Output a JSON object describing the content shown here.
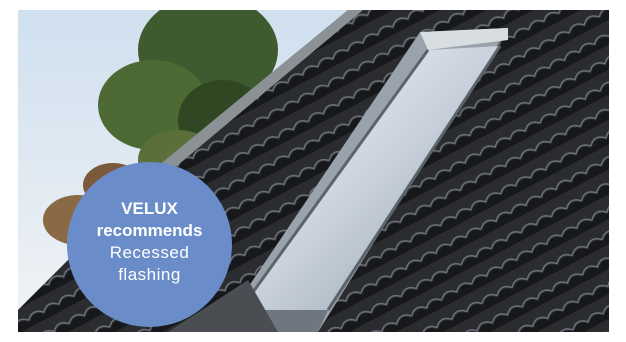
{
  "badge": {
    "brand": "VELUX",
    "verb": "recommends",
    "product_line1": "Recessed",
    "product_line2": "flashing",
    "background_color": "#6a8cc8",
    "text_color": "#ffffff"
  },
  "scene": {
    "subjects": [
      "sky",
      "tree",
      "roof-tiles",
      "roof-window",
      "window-flashing"
    ]
  }
}
